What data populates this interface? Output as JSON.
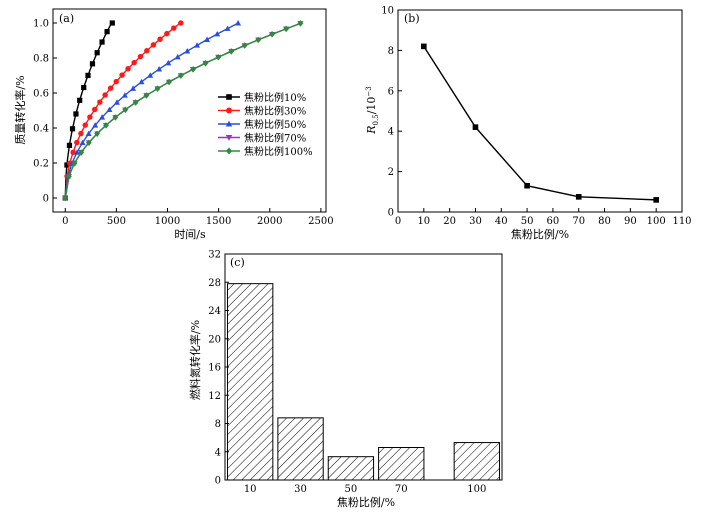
{
  "chart_data": [
    {
      "id": "a",
      "type": "line",
      "panel_label": "(a)",
      "xlabel": "时间/s",
      "ylabel": "质量转化率/%",
      "xlim": [
        -120,
        2550
      ],
      "ylim": [
        -0.08,
        1.08
      ],
      "xticks": [
        0,
        500,
        1000,
        1500,
        2000,
        2500
      ],
      "yticks": [
        0,
        0.2,
        0.4,
        0.6,
        0.8,
        1.0
      ],
      "ytick_labels": [
        "0",
        "0.2",
        "0.4",
        "0.6",
        "0.8",
        "1.0"
      ],
      "legend_position": "center-right",
      "series": [
        {
          "name": "焦粉比例10%",
          "color": "#000000",
          "marker": "square",
          "k": 0.047,
          "n": 0.5,
          "t_end": 460
        },
        {
          "name": "焦粉比例30%",
          "color": "#ff1a1a",
          "marker": "circle",
          "k": 0.0298,
          "n": 0.5,
          "t_end": 1130
        },
        {
          "name": "焦粉比例50%",
          "color": "#2a4fd8",
          "marker": "triangle-up",
          "k": 0.0243,
          "n": 0.5,
          "t_end": 1690
        },
        {
          "name": "焦粉比例70%",
          "color": "#9a33c7",
          "marker": "triangle-down",
          "k": 0.0208,
          "n": 0.5,
          "t_end": 2300
        },
        {
          "name": "焦粉比例100%",
          "color": "#2e8b3a",
          "marker": "diamond",
          "k": 0.0208,
          "n": 0.5,
          "t_end": 2300
        }
      ]
    },
    {
      "id": "b",
      "type": "line",
      "panel_label": "(b)",
      "xlabel": "焦粉比例/%",
      "ylabel_main": "R",
      "ylabel_sub": "0.5",
      "ylabel_rest": "/10",
      "ylabel_sup": "−3",
      "xlim": [
        0,
        110
      ],
      "ylim": [
        0,
        10
      ],
      "xticks": [
        0,
        10,
        20,
        30,
        40,
        50,
        60,
        70,
        80,
        90,
        100,
        110
      ],
      "yticks": [
        0,
        2,
        4,
        6,
        8,
        10
      ],
      "series": [
        {
          "x": [
            10,
            30,
            50,
            70,
            100
          ],
          "y": [
            8.2,
            4.2,
            1.3,
            0.75,
            0.6
          ],
          "color": "#000000",
          "marker": "square"
        }
      ]
    },
    {
      "id": "c",
      "type": "bar",
      "panel_label": "(c)",
      "xlabel": "焦粉比例/%",
      "ylabel": "燃料氮转化率/%",
      "categories": [
        "10",
        "30",
        "50",
        "70",
        "100"
      ],
      "x_positions": [
        10,
        30,
        50,
        70,
        100
      ],
      "values": [
        27.8,
        8.8,
        3.3,
        4.6,
        5.3
      ],
      "xlim": [
        0,
        110
      ],
      "ylim": [
        0,
        32
      ],
      "yticks": [
        0,
        4,
        8,
        12,
        16,
        20,
        24,
        28,
        32
      ],
      "bar_width": 18,
      "hatch": "diagonal"
    }
  ]
}
